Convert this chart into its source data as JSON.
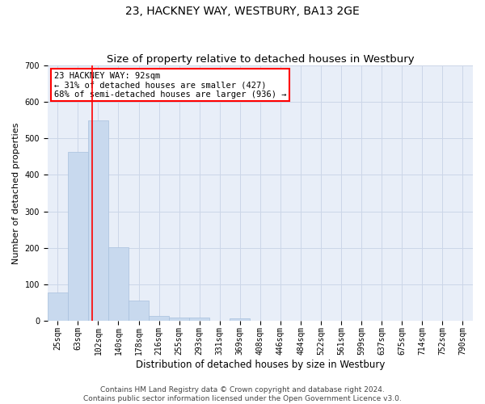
{
  "title": "23, HACKNEY WAY, WESTBURY, BA13 2GE",
  "subtitle": "Size of property relative to detached houses in Westbury",
  "xlabel": "Distribution of detached houses by size in Westbury",
  "ylabel": "Number of detached properties",
  "bar_color": "#c8d9ee",
  "bar_edgecolor": "#a8c0dd",
  "bar_linewidth": 0.5,
  "categories": [
    "25sqm",
    "63sqm",
    "102sqm",
    "140sqm",
    "178sqm",
    "216sqm",
    "255sqm",
    "293sqm",
    "331sqm",
    "369sqm",
    "408sqm",
    "446sqm",
    "484sqm",
    "522sqm",
    "561sqm",
    "599sqm",
    "637sqm",
    "675sqm",
    "714sqm",
    "752sqm",
    "790sqm"
  ],
  "values": [
    78,
    463,
    550,
    203,
    57,
    14,
    9,
    9,
    0,
    8,
    0,
    0,
    0,
    0,
    0,
    0,
    0,
    0,
    0,
    0,
    0
  ],
  "ylim": [
    0,
    700
  ],
  "yticks": [
    0,
    100,
    200,
    300,
    400,
    500,
    600,
    700
  ],
  "vline_x": 1.72,
  "annotation_text": "23 HACKNEY WAY: 92sqm\n← 31% of detached houses are smaller (427)\n68% of semi-detached houses are larger (936) →",
  "annotation_box_color": "white",
  "annotation_box_edgecolor": "red",
  "vline_color": "red",
  "vline_linewidth": 1.2,
  "footer_text": "Contains HM Land Registry data © Crown copyright and database right 2024.\nContains public sector information licensed under the Open Government Licence v3.0.",
  "grid_color": "#ccd6e8",
  "background_color": "#e8eef8",
  "title_fontsize": 10,
  "subtitle_fontsize": 9.5,
  "xlabel_fontsize": 8.5,
  "ylabel_fontsize": 8,
  "tick_fontsize": 7,
  "annotation_fontsize": 7.5,
  "footer_fontsize": 6.5
}
